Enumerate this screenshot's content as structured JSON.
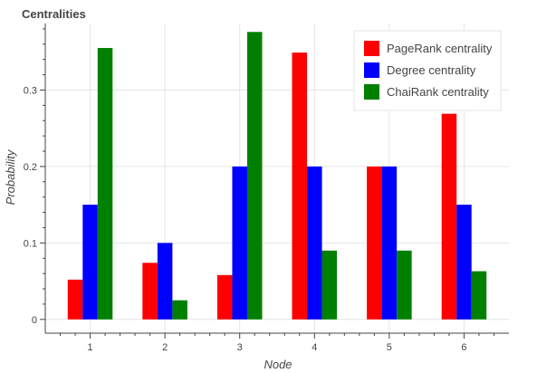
{
  "chart_data": {
    "type": "bar",
    "title": "Centralities",
    "xlabel": "Node",
    "ylabel": "Probability",
    "categories": [
      "1",
      "2",
      "3",
      "4",
      "5",
      "6"
    ],
    "y_ticks": [
      "0",
      "0.1",
      "0.2",
      "0.3"
    ],
    "ylim": [
      -0.018,
      0.387
    ],
    "grid": true,
    "legend_position": "top-right",
    "series": [
      {
        "name": "PageRank centrality",
        "color": "#ff0000",
        "values": [
          0.052,
          0.074,
          0.058,
          0.349,
          0.2,
          0.269
        ]
      },
      {
        "name": "Degree centrality",
        "color": "#0000ff",
        "values": [
          0.15,
          0.1,
          0.2,
          0.2,
          0.2,
          0.15
        ]
      },
      {
        "name": "ChaiRank centrality",
        "color": "#008000",
        "values": [
          0.355,
          0.025,
          0.376,
          0.09,
          0.09,
          0.063
        ]
      }
    ]
  }
}
